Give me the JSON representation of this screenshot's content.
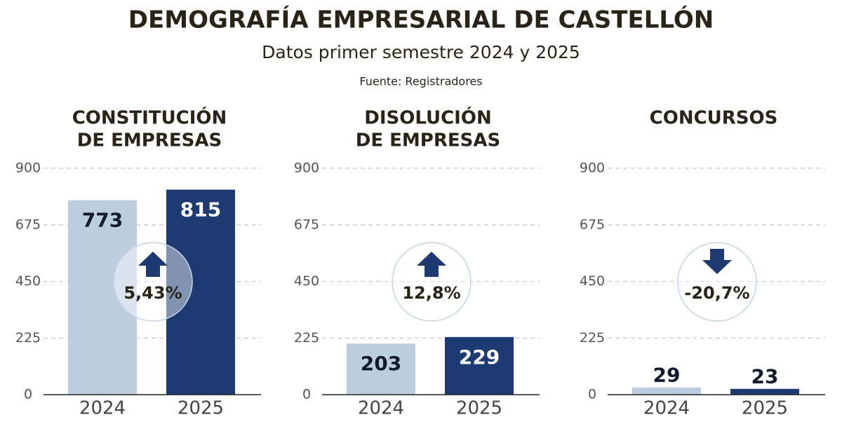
{
  "header": {
    "title": "DEMOGRAFÍA EMPRESARIAL DE CASTELLÓN",
    "subtitle": "Datos primer semestre 2024 y 2025",
    "source": "Fuente: Registradores"
  },
  "chart_data": [
    {
      "type": "bar",
      "title": [
        "CONSTITUCIÓN",
        "DE EMPRESAS"
      ],
      "categories": [
        "2024",
        "2025"
      ],
      "values": [
        773,
        815
      ],
      "colors": [
        "#bccde0",
        "#1d3a72"
      ],
      "ylim": [
        0,
        900
      ],
      "yticks": [
        0,
        225,
        450,
        675,
        900
      ],
      "grid": true,
      "annotation": "5,43%"
    },
    {
      "type": "bar",
      "title": [
        "DISOLUCIÓN",
        "DE EMPRESAS"
      ],
      "categories": [
        "2024",
        "2025"
      ],
      "values": [
        203,
        229
      ],
      "colors": [
        "#bccde0",
        "#1d3a72"
      ],
      "ylim": [
        0,
        900
      ],
      "yticks": [
        0,
        225,
        450,
        675,
        900
      ],
      "grid": true,
      "annotation": "12,8%"
    },
    {
      "type": "bar",
      "title": [
        "CONCURSOS"
      ],
      "categories": [
        "2024",
        "2025"
      ],
      "values": [
        29,
        23
      ],
      "colors": [
        "#bccde0",
        "#1d3a72"
      ],
      "ylim": [
        0,
        900
      ],
      "yticks": [
        0,
        225,
        450,
        675,
        900
      ],
      "grid": true,
      "annotation": "-20,7%"
    }
  ]
}
